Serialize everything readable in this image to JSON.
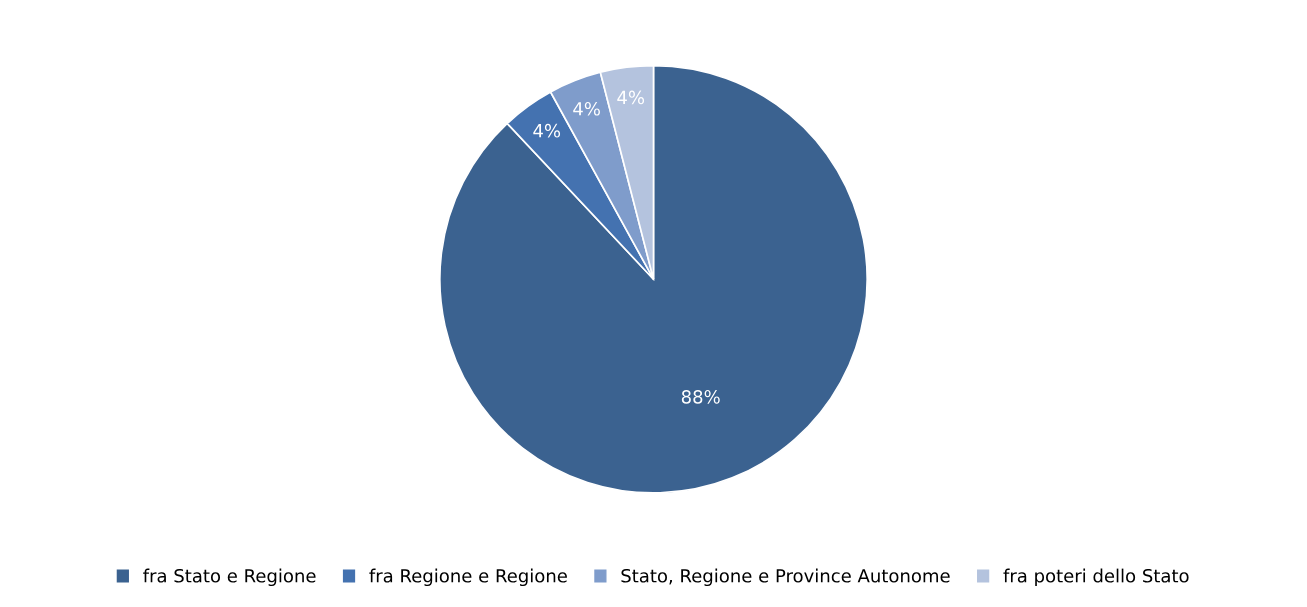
{
  "chart_data": {
    "type": "pie",
    "categories": [
      "fra Stato e Regione",
      "fra Regione e Regione",
      "Stato, Regione e Province Autonome",
      "fra poteri dello Stato"
    ],
    "values": [
      88,
      4,
      4,
      4
    ],
    "colors": [
      "#3b6290",
      "#4472b0",
      "#7f9ccb",
      "#b4c3de"
    ],
    "data_labels": true,
    "value_labels": [
      "88%",
      "4%",
      "4%",
      "4%"
    ],
    "legend": "bottom"
  }
}
